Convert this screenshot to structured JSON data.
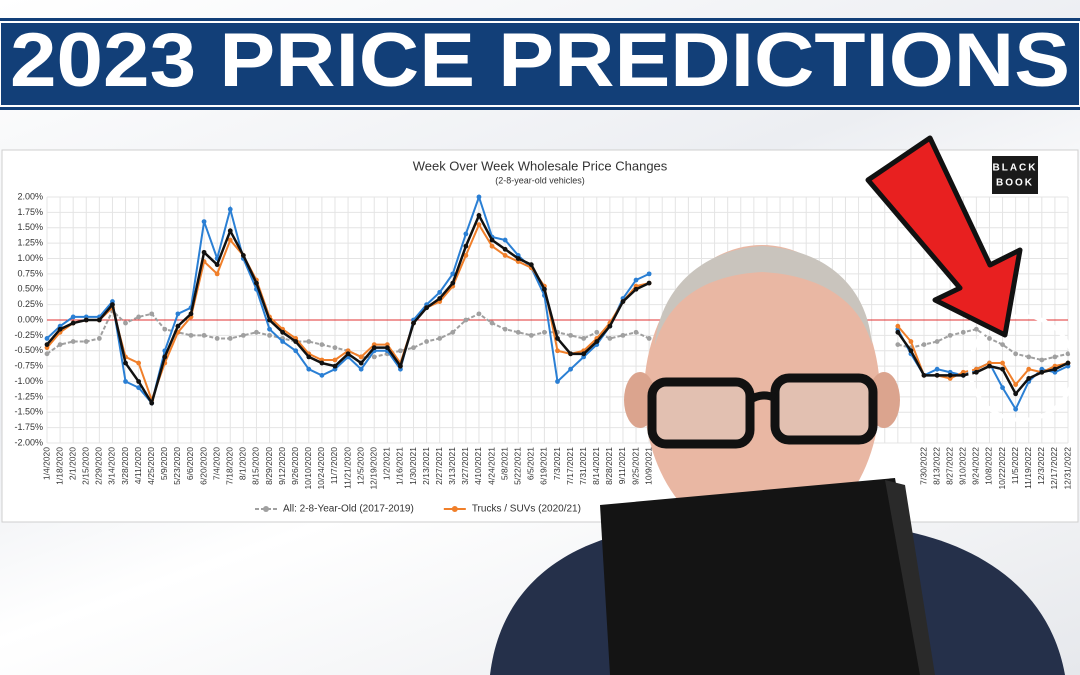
{
  "banner": "2023 PRICE PREDICTIONS",
  "logo": [
    "BLACK",
    "BOOK"
  ],
  "chart_data": {
    "type": "line",
    "title": "Week Over Week Wholesale Price Changes",
    "subtitle": "(2-8-year-old vehicles)",
    "categories": [
      "1/4/2020",
      "1/18/2020",
      "2/1/2020",
      "2/15/2020",
      "2/29/2020",
      "3/14/2020",
      "3/28/2020",
      "4/11/2020",
      "4/25/2020",
      "5/9/2020",
      "5/23/2020",
      "6/6/2020",
      "6/20/2020",
      "7/4/2020",
      "7/18/2020",
      "8/1/2020",
      "8/15/2020",
      "8/29/2020",
      "9/12/2020",
      "9/26/2020",
      "10/10/2020",
      "10/24/2020",
      "11/7/2020",
      "11/21/2020",
      "12/5/2020",
      "12/19/2020",
      "1/2/2021",
      "1/16/2021",
      "1/30/2021",
      "2/13/2021",
      "2/27/2021",
      "3/13/2021",
      "3/27/2021",
      "4/10/2021",
      "4/24/2021",
      "5/8/2021",
      "5/22/2021",
      "6/5/2021",
      "6/19/2021",
      "7/3/2021",
      "7/17/2021",
      "7/31/2021",
      "8/14/2021",
      "8/28/2021",
      "9/11/2021",
      "9/25/2021",
      "10/9/2021",
      null,
      null,
      null,
      null,
      null,
      null,
      null,
      null,
      null,
      null,
      null,
      null,
      null,
      null,
      null,
      null,
      null,
      null,
      null,
      null,
      "7/30/2022",
      "8/13/2022",
      "8/27/2022",
      "9/10/2022",
      "9/24/2022",
      "10/8/2022",
      "10/22/2022",
      "11/5/2022",
      "11/19/2022",
      "12/3/2022",
      "12/17/2022",
      "12/31/2022"
    ],
    "series": [
      {
        "name": "All: 2-8-Year-Old (2017-2019)",
        "color": "#a0a0a0",
        "dashed": true,
        "values": [
          -0.55,
          -0.4,
          -0.35,
          -0.35,
          -0.3,
          0.15,
          -0.05,
          0.05,
          0.1,
          -0.15,
          -0.2,
          -0.25,
          -0.25,
          -0.3,
          -0.3,
          -0.25,
          -0.2,
          -0.25,
          -0.3,
          -0.35,
          -0.35,
          -0.4,
          -0.45,
          -0.5,
          -0.6,
          -0.6,
          -0.55,
          -0.5,
          -0.45,
          -0.35,
          -0.3,
          -0.2,
          0.0,
          0.1,
          -0.05,
          -0.15,
          -0.2,
          -0.25,
          -0.2,
          -0.2,
          -0.25,
          -0.3,
          -0.2,
          -0.3,
          -0.25,
          -0.2,
          -0.3,
          null,
          null,
          null,
          null,
          null,
          null,
          null,
          null,
          null,
          null,
          null,
          null,
          null,
          null,
          null,
          null,
          null,
          null,
          -0.4,
          -0.45,
          -0.4,
          -0.35,
          -0.25,
          -0.2,
          -0.15,
          -0.3,
          -0.4,
          -0.55,
          -0.6,
          -0.65,
          -0.6,
          -0.55
        ]
      },
      {
        "color": "#2a7fd4",
        "values": [
          -0.3,
          -0.1,
          0.05,
          0.05,
          0.05,
          0.3,
          -1.0,
          -1.1,
          -1.35,
          -0.5,
          0.1,
          0.2,
          1.6,
          1.0,
          1.8,
          1.0,
          0.5,
          -0.15,
          -0.35,
          -0.5,
          -0.8,
          -0.9,
          -0.8,
          -0.6,
          -0.8,
          -0.5,
          -0.5,
          -0.8,
          0.0,
          0.25,
          0.45,
          0.75,
          1.4,
          2.0,
          1.35,
          1.3,
          1.05,
          0.85,
          0.4,
          -1.0,
          -0.8,
          -0.6,
          -0.4,
          -0.1,
          0.35,
          0.65,
          0.75,
          null,
          null,
          null,
          null,
          null,
          null,
          null,
          null,
          null,
          null,
          null,
          null,
          null,
          null,
          null,
          null,
          null,
          null,
          -0.15,
          -0.55,
          -0.9,
          -0.8,
          -0.85,
          -0.9,
          -0.8,
          -0.7,
          -1.1,
          -1.45,
          -1.0,
          -0.8,
          -0.85,
          -0.75
        ]
      },
      {
        "name": "Trucks / SUVs (2020/21)",
        "color": "#f07f2a",
        "values": [
          -0.45,
          -0.2,
          -0.05,
          0.0,
          0.0,
          0.2,
          -0.6,
          -0.7,
          -1.3,
          -0.7,
          -0.2,
          0.05,
          0.95,
          0.75,
          1.3,
          1.05,
          0.65,
          0.05,
          -0.15,
          -0.3,
          -0.55,
          -0.65,
          -0.65,
          -0.5,
          -0.6,
          -0.4,
          -0.4,
          -0.7,
          -0.05,
          0.2,
          0.3,
          0.55,
          1.05,
          1.55,
          1.2,
          1.05,
          0.95,
          0.85,
          0.55,
          -0.5,
          -0.55,
          -0.5,
          -0.3,
          -0.05,
          0.3,
          0.55,
          0.6,
          null,
          null,
          null,
          null,
          null,
          null,
          null,
          null,
          null,
          null,
          null,
          null,
          null,
          null,
          null,
          null,
          null,
          null,
          -0.1,
          -0.35,
          -0.9,
          -0.9,
          -0.95,
          -0.85,
          -0.8,
          -0.7,
          -0.7,
          -1.05,
          -0.8,
          -0.85,
          -0.75,
          -0.7
        ]
      },
      {
        "color": "#111111",
        "values": [
          -0.4,
          -0.15,
          -0.05,
          0.0,
          0.0,
          0.25,
          -0.7,
          -1.0,
          -1.35,
          -0.6,
          -0.1,
          0.1,
          1.1,
          0.9,
          1.45,
          1.05,
          0.6,
          0.0,
          -0.2,
          -0.35,
          -0.6,
          -0.7,
          -0.75,
          -0.55,
          -0.7,
          -0.45,
          -0.45,
          -0.75,
          -0.05,
          0.2,
          0.35,
          0.6,
          1.2,
          1.7,
          1.3,
          1.15,
          1.0,
          0.9,
          0.5,
          -0.3,
          -0.55,
          -0.55,
          -0.35,
          -0.1,
          0.3,
          0.5,
          0.6,
          null,
          null,
          null,
          null,
          null,
          null,
          null,
          null,
          null,
          null,
          null,
          null,
          null,
          null,
          null,
          null,
          null,
          null,
          -0.2,
          -0.5,
          -0.9,
          -0.9,
          -0.9,
          -0.9,
          -0.85,
          -0.75,
          -0.8,
          -1.2,
          -0.95,
          -0.85,
          -0.8,
          -0.7
        ]
      }
    ],
    "ylim": [
      -2,
      2
    ],
    "yticks": [
      {
        "value": 2,
        "label": "2.00%"
      },
      {
        "value": 1.75,
        "label": "1.75%"
      },
      {
        "value": 1.5,
        "label": "1.50%"
      },
      {
        "value": 1.25,
        "label": "1.25%"
      },
      {
        "value": 1,
        "label": "1.00%"
      },
      {
        "value": 0.75,
        "label": "0.75%"
      },
      {
        "value": 0.5,
        "label": "0.50%"
      },
      {
        "value": 0.25,
        "label": "0.25%"
      },
      {
        "value": 0,
        "label": "0.00%"
      },
      {
        "value": -0.25,
        "label": "-0.25%"
      },
      {
        "value": -0.5,
        "label": "-0.50%"
      },
      {
        "value": -0.75,
        "label": "-0.75%"
      },
      {
        "value": -1,
        "label": "-1.00%"
      },
      {
        "value": -1.25,
        "label": "-1.25%"
      },
      {
        "value": -1.5,
        "label": "-1.50%"
      },
      {
        "value": -1.75,
        "label": "-1.75%"
      },
      {
        "value": -2,
        "label": "-2.00%"
      }
    ],
    "zero_line_color": "#e03030",
    "grid": true,
    "legend": "bottom"
  }
}
